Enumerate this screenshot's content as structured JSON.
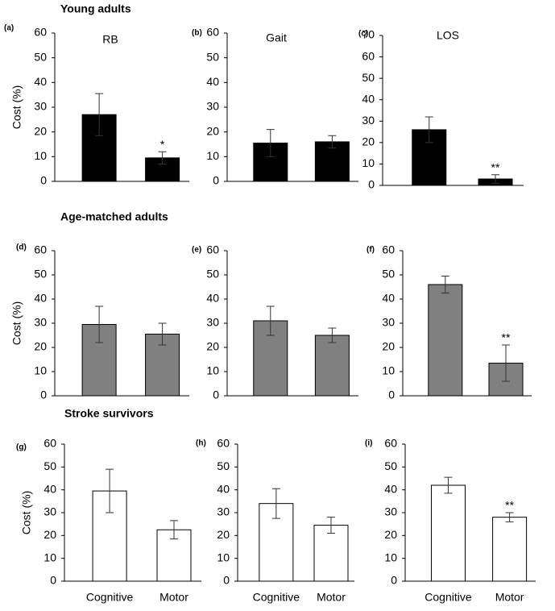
{
  "sections": [
    {
      "title": "Young adults"
    },
    {
      "title": "Age-matched adults"
    },
    {
      "title": "Stroke survivors"
    }
  ],
  "chart_data": [
    {
      "type": "bar",
      "panel_label": "(a)",
      "title": "RB",
      "y_label": "Cost (%)",
      "categories": [
        null,
        null
      ],
      "values": [
        27,
        9.5
      ],
      "errors": [
        8.5,
        2.5
      ],
      "significance": [
        null,
        "*"
      ],
      "color": "#000000",
      "ylim": [
        0,
        60
      ],
      "yticks": [
        0,
        10,
        20,
        30,
        40,
        50,
        60
      ]
    },
    {
      "type": "bar",
      "panel_label": "(b)",
      "title": "Gait",
      "categories": [
        null,
        null
      ],
      "values": [
        15.5,
        16
      ],
      "errors": [
        5.5,
        2.5
      ],
      "color": "#000000",
      "ylim": [
        0,
        60
      ],
      "yticks": [
        0,
        10,
        20,
        30,
        40,
        50,
        60
      ]
    },
    {
      "type": "bar",
      "panel_label": "(c)",
      "title": "LOS",
      "categories": [
        null,
        null
      ],
      "values": [
        26,
        3
      ],
      "errors": [
        6,
        2
      ],
      "significance": [
        null,
        "**"
      ],
      "color": "#000000",
      "ylim": [
        0,
        70
      ],
      "yticks": [
        0,
        10,
        20,
        30,
        40,
        50,
        60,
        70
      ]
    },
    {
      "type": "bar",
      "panel_label": "(d)",
      "y_label": "Cost (%)",
      "categories": [
        null,
        null
      ],
      "values": [
        29.5,
        25.5
      ],
      "errors": [
        7.5,
        4.5
      ],
      "color": "#808080",
      "ylim": [
        0,
        60
      ],
      "yticks": [
        0,
        10,
        20,
        30,
        40,
        50,
        60
      ]
    },
    {
      "type": "bar",
      "panel_label": "(e)",
      "categories": [
        null,
        null
      ],
      "values": [
        31,
        25
      ],
      "errors": [
        6,
        3
      ],
      "color": "#808080",
      "ylim": [
        0,
        60
      ],
      "yticks": [
        0,
        10,
        20,
        30,
        40,
        50,
        60
      ]
    },
    {
      "type": "bar",
      "panel_label": "(f)",
      "categories": [
        null,
        null
      ],
      "values": [
        46,
        13.5
      ],
      "errors": [
        3.5,
        7.5
      ],
      "significance": [
        null,
        "**"
      ],
      "color": "#808080",
      "ylim": [
        0,
        60
      ],
      "yticks": [
        0,
        10,
        20,
        30,
        40,
        50,
        60
      ]
    },
    {
      "type": "bar",
      "panel_label": "(g)",
      "y_label": "Cost (%)",
      "categories": [
        "Cognitive",
        "Motor"
      ],
      "values": [
        39.5,
        22.5
      ],
      "errors": [
        9.5,
        4
      ],
      "color": "#ffffff",
      "ylim": [
        0,
        60
      ],
      "yticks": [
        0,
        10,
        20,
        30,
        40,
        50,
        60
      ]
    },
    {
      "type": "bar",
      "panel_label": "(h)",
      "categories": [
        "Cognitive",
        "Motor"
      ],
      "values": [
        34,
        24.5
      ],
      "errors": [
        6.5,
        3.5
      ],
      "color": "#ffffff",
      "ylim": [
        0,
        60
      ],
      "yticks": [
        0,
        10,
        20,
        30,
        40,
        50,
        60
      ]
    },
    {
      "type": "bar",
      "panel_label": "(i)",
      "categories": [
        "Cognitive",
        "Motor"
      ],
      "values": [
        42,
        28
      ],
      "errors": [
        3.5,
        2
      ],
      "significance": [
        null,
        "**"
      ],
      "color": "#ffffff",
      "ylim": [
        0,
        60
      ],
      "yticks": [
        0,
        10,
        20,
        30,
        40,
        50,
        60
      ]
    }
  ]
}
